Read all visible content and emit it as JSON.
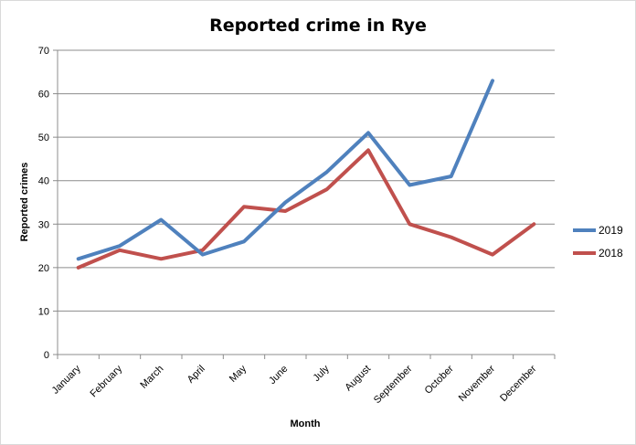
{
  "chart_data": {
    "type": "line",
    "title": "Reported crime in Rye",
    "xlabel": "Month",
    "ylabel": "Reported crimes",
    "categories": [
      "January",
      "February",
      "March",
      "April",
      "May",
      "June",
      "July",
      "August",
      "September",
      "October",
      "November",
      "December"
    ],
    "ylim": [
      0,
      70
    ],
    "yticks": [
      0,
      10,
      20,
      30,
      40,
      50,
      60,
      70
    ],
    "grid": true,
    "legend_position": "right",
    "series": [
      {
        "name": "2019",
        "color": "#4f81bd",
        "values": [
          22,
          25,
          31,
          23,
          26,
          35,
          42,
          51,
          39,
          41,
          63,
          null
        ]
      },
      {
        "name": "2018",
        "color": "#c0504d",
        "values": [
          20,
          24,
          22,
          24,
          34,
          33,
          38,
          47,
          30,
          27,
          23,
          30
        ]
      }
    ]
  }
}
